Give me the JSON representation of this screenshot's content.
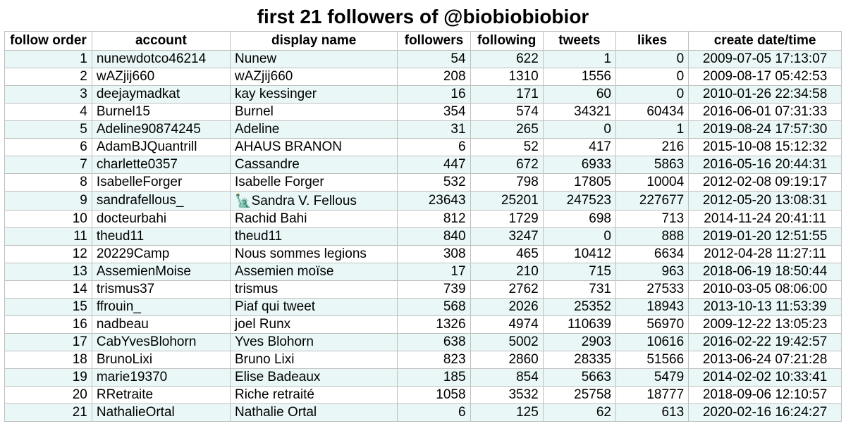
{
  "title": "first 21 followers of @biobiobiobior",
  "columns": [
    "follow order",
    "account",
    "display name",
    "followers",
    "following",
    "tweets",
    "likes",
    "create date/time"
  ],
  "rows": [
    {
      "order": "1",
      "account": "nunewdotco46214",
      "display": "Nunew",
      "followers": "54",
      "following": "622",
      "tweets": "1",
      "likes": "0",
      "date": "2009-07-05 17:13:07"
    },
    {
      "order": "2",
      "account": "wAZjij660",
      "display": "wAZjij660",
      "followers": "208",
      "following": "1310",
      "tweets": "1556",
      "likes": "0",
      "date": "2009-08-17 05:42:53"
    },
    {
      "order": "3",
      "account": "deejaymadkat",
      "display": "kay kessinger",
      "followers": "16",
      "following": "171",
      "tweets": "60",
      "likes": "0",
      "date": "2010-01-26 22:34:58"
    },
    {
      "order": "4",
      "account": "Burnel15",
      "display": "Burnel",
      "followers": "354",
      "following": "574",
      "tweets": "34321",
      "likes": "60434",
      "date": "2016-06-01 07:31:33"
    },
    {
      "order": "5",
      "account": "Adeline90874245",
      "display": "Adeline",
      "followers": "31",
      "following": "265",
      "tweets": "0",
      "likes": "1",
      "date": "2019-08-24 17:57:30"
    },
    {
      "order": "6",
      "account": "AdamBJQuantrill",
      "display": "AHAUS BRANON",
      "followers": "6",
      "following": "52",
      "tweets": "417",
      "likes": "216",
      "date": "2015-10-08 15:12:32"
    },
    {
      "order": "7",
      "account": "charlette0357",
      "display": "Cassandre",
      "followers": "447",
      "following": "672",
      "tweets": "6933",
      "likes": "5863",
      "date": "2016-05-16 20:44:31"
    },
    {
      "order": "8",
      "account": "IsabelleForger",
      "display": "Isabelle Forger",
      "followers": "532",
      "following": "798",
      "tweets": "17805",
      "likes": "10004",
      "date": "2012-02-08 09:19:17"
    },
    {
      "order": "9",
      "account": "sandrafellous_",
      "display": "🗽Sandra V. Fellous",
      "followers": "23643",
      "following": "25201",
      "tweets": "247523",
      "likes": "227677",
      "date": "2012-05-20 13:08:31"
    },
    {
      "order": "10",
      "account": "docteurbahi",
      "display": "Rachid Bahi",
      "followers": "812",
      "following": "1729",
      "tweets": "698",
      "likes": "713",
      "date": "2014-11-24 20:41:11"
    },
    {
      "order": "11",
      "account": "theud11",
      "display": "theud11",
      "followers": "840",
      "following": "3247",
      "tweets": "0",
      "likes": "888",
      "date": "2019-01-20 12:51:55"
    },
    {
      "order": "12",
      "account": "20229Camp",
      "display": "Nous sommes legions",
      "followers": "308",
      "following": "465",
      "tweets": "10412",
      "likes": "6634",
      "date": "2012-04-28 11:27:11"
    },
    {
      "order": "13",
      "account": "AssemienMoise",
      "display": "Assemien moïse",
      "followers": "17",
      "following": "210",
      "tweets": "715",
      "likes": "963",
      "date": "2018-06-19 18:50:44"
    },
    {
      "order": "14",
      "account": "trismus37",
      "display": "trismus",
      "followers": "739",
      "following": "2762",
      "tweets": "731",
      "likes": "27533",
      "date": "2010-03-05 08:06:00"
    },
    {
      "order": "15",
      "account": "ffrouin_",
      "display": "Piaf qui tweet",
      "followers": "568",
      "following": "2026",
      "tweets": "25352",
      "likes": "18943",
      "date": "2013-10-13 11:53:39"
    },
    {
      "order": "16",
      "account": "nadbeau",
      "display": "joel Runx",
      "followers": "1326",
      "following": "4974",
      "tweets": "110639",
      "likes": "56970",
      "date": "2009-12-22 13:05:23"
    },
    {
      "order": "17",
      "account": "CabYvesBlohorn",
      "display": "Yves Blohorn",
      "followers": "638",
      "following": "5002",
      "tweets": "2903",
      "likes": "10616",
      "date": "2016-02-22 19:42:57"
    },
    {
      "order": "18",
      "account": "BrunoLixi",
      "display": "Bruno Lixi",
      "followers": "823",
      "following": "2860",
      "tweets": "28335",
      "likes": "51566",
      "date": "2013-06-24 07:21:28"
    },
    {
      "order": "19",
      "account": "marie19370",
      "display": "Elise Badeaux",
      "followers": "185",
      "following": "854",
      "tweets": "5663",
      "likes": "5479",
      "date": "2014-02-02 10:33:41"
    },
    {
      "order": "20",
      "account": "RRetraite",
      "display": "Riche retraité",
      "followers": "1058",
      "following": "3532",
      "tweets": "25758",
      "likes": "18777",
      "date": "2018-09-06 12:10:57"
    },
    {
      "order": "21",
      "account": "NathalieOrtal",
      "display": "Nathalie Ortal",
      "followers": "6",
      "following": "125",
      "tweets": "62",
      "likes": "613",
      "date": "2020-02-16 16:24:27"
    }
  ]
}
